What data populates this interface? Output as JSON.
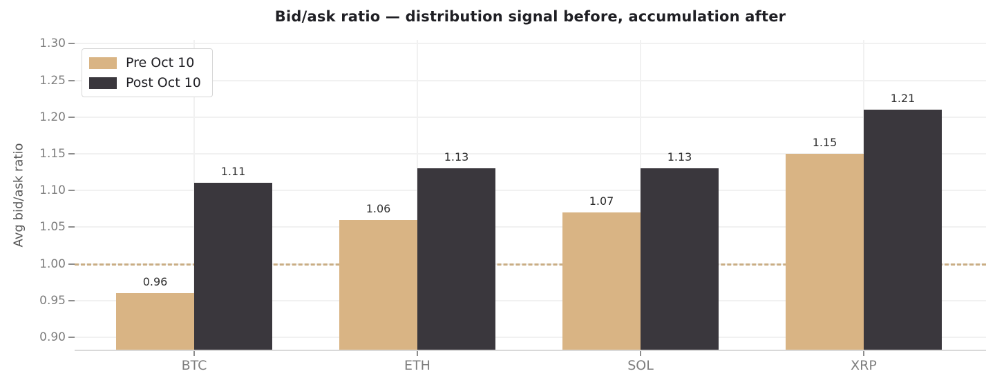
{
  "chart_data": {
    "type": "bar",
    "title": "Bid/ask ratio — distribution signal before, accumulation after",
    "ylabel": "Avg bid/ask ratio",
    "xlabel": "",
    "categories": [
      "BTC",
      "ETH",
      "SOL",
      "XRP"
    ],
    "series": [
      {
        "name": "Pre Oct 10",
        "color": "#d9b484",
        "values": [
          0.96,
          1.06,
          1.07,
          1.15
        ],
        "labels": [
          "0.96",
          "1.06",
          "1.07",
          "1.15"
        ]
      },
      {
        "name": "Post Oct 10",
        "color": "#3a373d",
        "values": [
          1.11,
          1.13,
          1.13,
          1.21
        ],
        "labels": [
          "1.11",
          "1.13",
          "1.13",
          "1.21"
        ]
      }
    ],
    "yticks": [
      0.9,
      0.95,
      1.0,
      1.05,
      1.1,
      1.15,
      1.2,
      1.25,
      1.3
    ],
    "ytick_labels": [
      "0.90",
      "0.95",
      "1.00",
      "1.05",
      "1.10",
      "1.15",
      "1.20",
      "1.25",
      "1.30"
    ],
    "ylim": [
      0.883,
      1.305
    ],
    "baseline": {
      "value": 1.0,
      "style": "dashed",
      "color": "#c9ad84"
    },
    "grid": true,
    "legend_position": "upper-left",
    "colors": {
      "title": "#1f1f24",
      "tick_label": "#7d7d7d",
      "category_label": "#7e7e7e",
      "axis_line": "#d9d9d9",
      "gridline": "#f1f1f1",
      "bar_label": "#2e2e2e",
      "ylabel": "#565656",
      "background": "#ffffff"
    }
  }
}
